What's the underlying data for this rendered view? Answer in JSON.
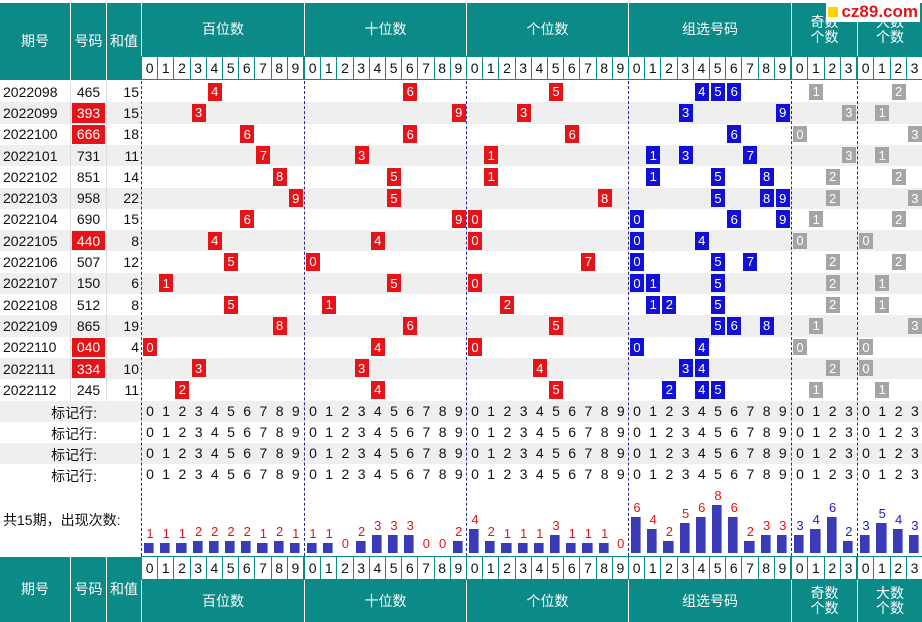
{
  "logo": "cz89.com",
  "headers": {
    "qihao": "期号",
    "haoma": "号码",
    "hezhi": "和值",
    "bai": "百位数",
    "shi": "十位数",
    "ge": "个位数",
    "zuxuan": "组选号码",
    "jishu": "奇数\n个数",
    "dashu": "大数\n个数"
  },
  "digits": [
    "0",
    "1",
    "2",
    "3",
    "4",
    "5",
    "6",
    "7",
    "8",
    "9"
  ],
  "small_digits": [
    "0",
    "1",
    "2",
    "3"
  ],
  "rows": [
    {
      "qihao": "2022098",
      "haoma": "465",
      "hezhi": "15",
      "hl": false,
      "b": 4,
      "s": 6,
      "g": 5,
      "z": [
        4,
        5,
        6
      ],
      "j": 1,
      "d": 2
    },
    {
      "qihao": "2022099",
      "haoma": "393",
      "hezhi": "15",
      "hl": true,
      "b": 3,
      "s": 9,
      "g": 3,
      "z": [
        3,
        9
      ],
      "j": 3,
      "d": 1
    },
    {
      "qihao": "2022100",
      "haoma": "666",
      "hezhi": "18",
      "hl": true,
      "b": 6,
      "s": 6,
      "g": 6,
      "z": [
        6
      ],
      "j": 0,
      "d": 3
    },
    {
      "qihao": "2022101",
      "haoma": "731",
      "hezhi": "11",
      "hl": false,
      "b": 7,
      "s": 3,
      "g": 1,
      "z": [
        1,
        3,
        7
      ],
      "j": 3,
      "d": 1
    },
    {
      "qihao": "2022102",
      "haoma": "851",
      "hezhi": "14",
      "hl": false,
      "b": 8,
      "s": 5,
      "g": 1,
      "z": [
        1,
        5,
        8
      ],
      "j": 2,
      "d": 2
    },
    {
      "qihao": "2022103",
      "haoma": "958",
      "hezhi": "22",
      "hl": false,
      "b": 9,
      "s": 5,
      "g": 8,
      "z": [
        5,
        8,
        9
      ],
      "j": 2,
      "d": 3
    },
    {
      "qihao": "2022104",
      "haoma": "690",
      "hezhi": "15",
      "hl": false,
      "b": 6,
      "s": 9,
      "g": 0,
      "z": [
        0,
        6,
        9
      ],
      "j": 1,
      "d": 2
    },
    {
      "qihao": "2022105",
      "haoma": "440",
      "hezhi": "8",
      "hl": true,
      "b": 4,
      "s": 4,
      "g": 0,
      "z": [
        0,
        4
      ],
      "j": 0,
      "d": 0
    },
    {
      "qihao": "2022106",
      "haoma": "507",
      "hezhi": "12",
      "hl": false,
      "b": 5,
      "s": 0,
      "g": 7,
      "z": [
        0,
        5,
        7
      ],
      "j": 2,
      "d": 2
    },
    {
      "qihao": "2022107",
      "haoma": "150",
      "hezhi": "6",
      "hl": false,
      "b": 1,
      "s": 5,
      "g": 0,
      "z": [
        0,
        1,
        5
      ],
      "j": 2,
      "d": 1
    },
    {
      "qihao": "2022108",
      "haoma": "512",
      "hezhi": "8",
      "hl": false,
      "b": 5,
      "s": 1,
      "g": 2,
      "z": [
        1,
        2,
        5
      ],
      "j": 2,
      "d": 1
    },
    {
      "qihao": "2022109",
      "haoma": "865",
      "hezhi": "19",
      "hl": false,
      "b": 8,
      "s": 6,
      "g": 5,
      "z": [
        5,
        6,
        8
      ],
      "j": 1,
      "d": 3
    },
    {
      "qihao": "2022110",
      "haoma": "040",
      "hezhi": "4",
      "hl": true,
      "b": 0,
      "s": 4,
      "g": 0,
      "z": [
        0,
        4
      ],
      "j": 0,
      "d": 0
    },
    {
      "qihao": "2022111",
      "haoma": "334",
      "hezhi": "10",
      "hl": true,
      "b": 3,
      "s": 3,
      "g": 4,
      "z": [
        3,
        4
      ],
      "j": 2,
      "d": 0
    },
    {
      "qihao": "2022112",
      "haoma": "245",
      "hezhi": "11",
      "hl": false,
      "b": 2,
      "s": 4,
      "g": 5,
      "z": [
        2,
        4,
        5
      ],
      "j": 1,
      "d": 1
    }
  ],
  "mark_label": "标记行:",
  "mark_rows": 4,
  "summary_label": "共15期，出现次数:",
  "counts": {
    "bai": [
      1,
      1,
      1,
      2,
      2,
      2,
      2,
      1,
      2,
      1
    ],
    "shi": [
      1,
      1,
      0,
      2,
      3,
      3,
      3,
      0,
      0,
      2
    ],
    "ge": [
      4,
      2,
      1,
      1,
      1,
      3,
      1,
      1,
      1,
      0
    ],
    "zuxuan": [
      6,
      4,
      2,
      5,
      6,
      8,
      6,
      2,
      3,
      3
    ],
    "jishu": [
      3,
      4,
      6,
      2
    ],
    "dashu": [
      3,
      5,
      4,
      3
    ]
  },
  "colors": {
    "header": "#0c8a88",
    "red": "#e41418",
    "blue": "#1010d6",
    "gray": "#a5a5a5",
    "bar": "#3b3bb8",
    "count_red": "#e41418",
    "count_blue": "#1a1ad0"
  }
}
